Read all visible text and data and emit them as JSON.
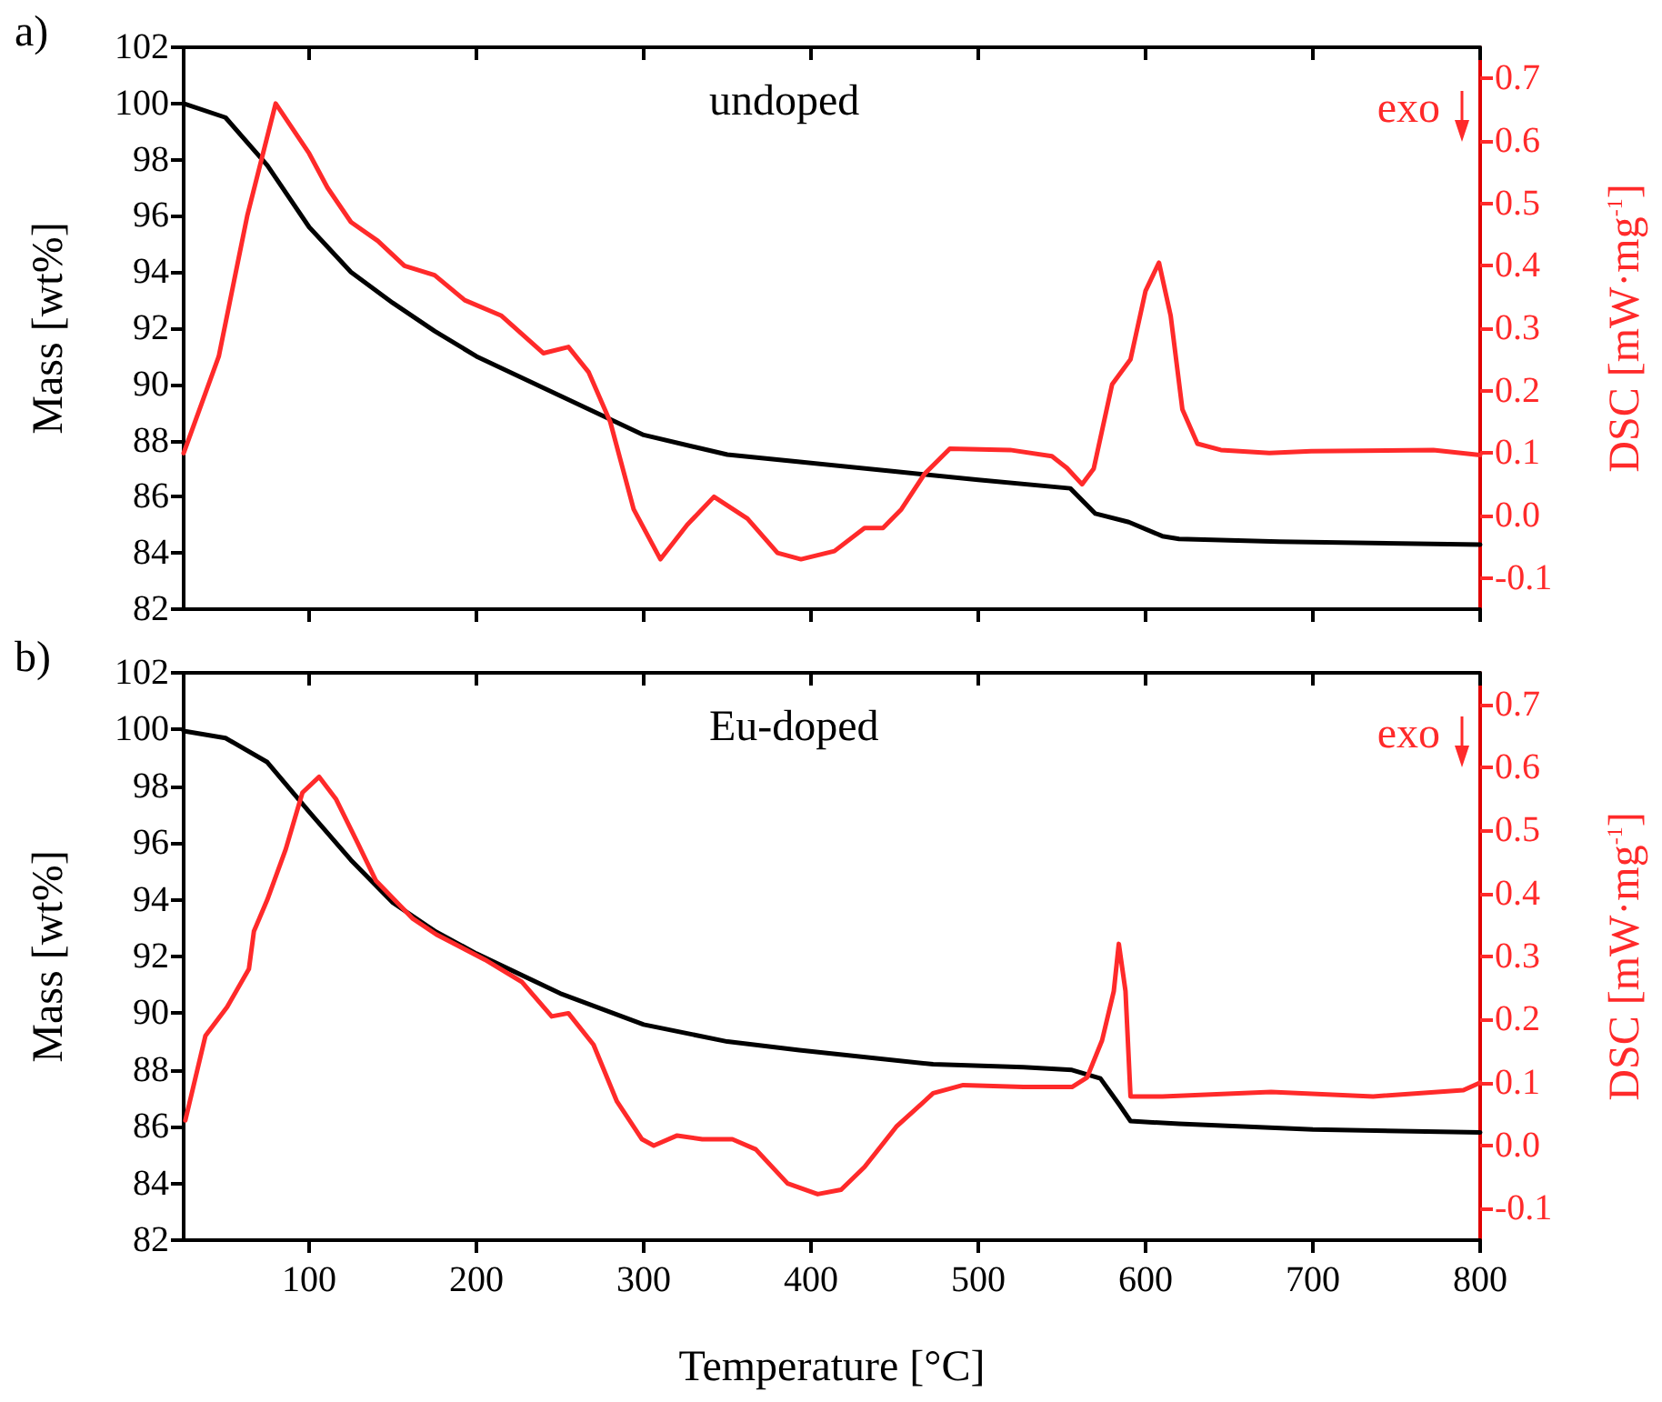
{
  "chart_data": [
    {
      "type": "line",
      "title": "a)",
      "ylabel": "Mass [wt%]",
      "y2label": "DSC [mW·mg$^{-1}$]",
      "annotations": [
        "undoped",
        "exo"
      ],
      "xlim": [
        25,
        800
      ],
      "xticks": [
        100,
        200,
        300,
        400,
        500,
        600,
        700,
        800
      ],
      "ylim": [
        82,
        102
      ],
      "yticks": [
        82,
        84,
        86,
        88,
        90,
        92,
        94,
        96,
        98,
        100,
        102
      ],
      "y2lim": [
        -0.15,
        0.75
      ],
      "y2ticks": [
        -0.1,
        {
          "value": 0,
          "label": "0.0"
        },
        0.1,
        0.2,
        0.3,
        0.4,
        0.5,
        0.6,
        0.7
      ],
      "tick_labels": "y",
      "grid": false,
      "marker": "none",
      "line_style": "solid",
      "series": [
        {
          "color": "#000000",
          "x": [
            25,
            50,
            75,
            100,
            125,
            150,
            175,
            200,
            250,
            300,
            350,
            392,
            450,
            500,
            555,
            570,
            590,
            610,
            620,
            680,
            800
          ],
          "values": [
            100,
            99.5,
            97.8,
            95.6,
            94,
            92.9,
            91.9,
            91.0,
            89.6,
            88.2,
            87.5,
            87.25,
            86.9,
            86.6,
            86.3,
            85.4,
            85.1,
            84.6,
            84.5,
            84.4,
            84.3
          ]
        },
        {
          "color": "#ff2a2a",
          "axis": "y2",
          "x": [
            25,
            46,
            63,
            80,
            100,
            111,
            125,
            141,
            157,
            175,
            193,
            215,
            240,
            255,
            267,
            280,
            294,
            310,
            326,
            342,
            362,
            380,
            394,
            414,
            432,
            443,
            454,
            468,
            483,
            519,
            544,
            553,
            562,
            569,
            580,
            591,
            600,
            608,
            615,
            622,
            631,
            645,
            674,
            699,
            772,
            800
          ],
          "values": [
            0.1,
            0.255,
            0.48,
            0.66,
            0.58,
            0.525,
            0.47,
            0.44,
            0.4,
            0.385,
            0.345,
            0.32,
            0.26,
            0.27,
            0.23,
            0.15,
            0.01,
            -0.07,
            -0.015,
            0.03,
            -0.005,
            -0.06,
            -0.07,
            -0.057,
            -0.02,
            -0.02,
            0.01,
            0.067,
            0.107,
            0.105,
            0.095,
            0.076,
            0.05,
            0.075,
            0.21,
            0.25,
            0.36,
            0.405,
            0.32,
            0.17,
            0.115,
            0.105,
            0.1,
            0.103,
            0.105,
            0.097
          ]
        }
      ]
    },
    {
      "type": "line",
      "title": "b)",
      "xlabel": "Temperature [°C]",
      "ylabel": "Mass [wt%]",
      "y2label": "DSC [mW·mg$^{-1}$]",
      "annotations": [
        "Eu-doped",
        "exo"
      ],
      "xlim": [
        25,
        800
      ],
      "xticks": [
        100,
        200,
        300,
        400,
        500,
        600,
        700,
        800
      ],
      "ylim": [
        82,
        102
      ],
      "yticks": [
        82,
        84,
        86,
        88,
        90,
        92,
        94,
        96,
        98,
        100,
        102
      ],
      "y2lim": [
        -0.15,
        0.75
      ],
      "y2ticks": [
        -0.1,
        {
          "value": 0,
          "label": "0.0"
        },
        0.1,
        0.2,
        0.3,
        0.4,
        0.5,
        0.6,
        0.7
      ],
      "grid": false,
      "marker": "none",
      "line_style": "solid",
      "series": [
        {
          "color": "#000000",
          "x": [
            25,
            50,
            75,
            100,
            125,
            150,
            175,
            200,
            250,
            300,
            350,
            393,
            473,
            527,
            556,
            573,
            584,
            591,
            620,
            700,
            800
          ],
          "values": [
            99.95,
            99.7,
            98.85,
            97.1,
            95.4,
            93.9,
            92.9,
            92.1,
            90.7,
            89.6,
            89.0,
            88.7,
            88.2,
            88.1,
            88.0,
            87.7,
            86.8,
            86.2,
            86.1,
            85.9,
            85.8
          ]
        },
        {
          "color": "#ff2a2a",
          "axis": "y2",
          "x": [
            26,
            38,
            51,
            64,
            67,
            75,
            86,
            96,
            106,
            116,
            129,
            140,
            162,
            176,
            205,
            227,
            245,
            255,
            270,
            284,
            299,
            306,
            320,
            335,
            353,
            367,
            386,
            404,
            418,
            432,
            451,
            473,
            491,
            527,
            556,
            565,
            574,
            581,
            584,
            588,
            591,
            610,
            675,
            736,
            790,
            800
          ],
          "values": [
            0.04,
            0.174,
            0.22,
            0.28,
            0.34,
            0.39,
            0.47,
            0.56,
            0.585,
            0.55,
            0.48,
            0.42,
            0.36,
            0.335,
            0.295,
            0.26,
            0.205,
            0.21,
            0.16,
            0.07,
            0.01,
            0.0,
            0.016,
            0.01,
            0.01,
            -0.006,
            -0.06,
            -0.077,
            -0.07,
            -0.034,
            0.03,
            0.083,
            0.096,
            0.093,
            0.093,
            0.108,
            0.167,
            0.245,
            0.32,
            0.245,
            0.078,
            0.078,
            0.085,
            0.078,
            0.088,
            0.1
          ]
        }
      ]
    }
  ]
}
